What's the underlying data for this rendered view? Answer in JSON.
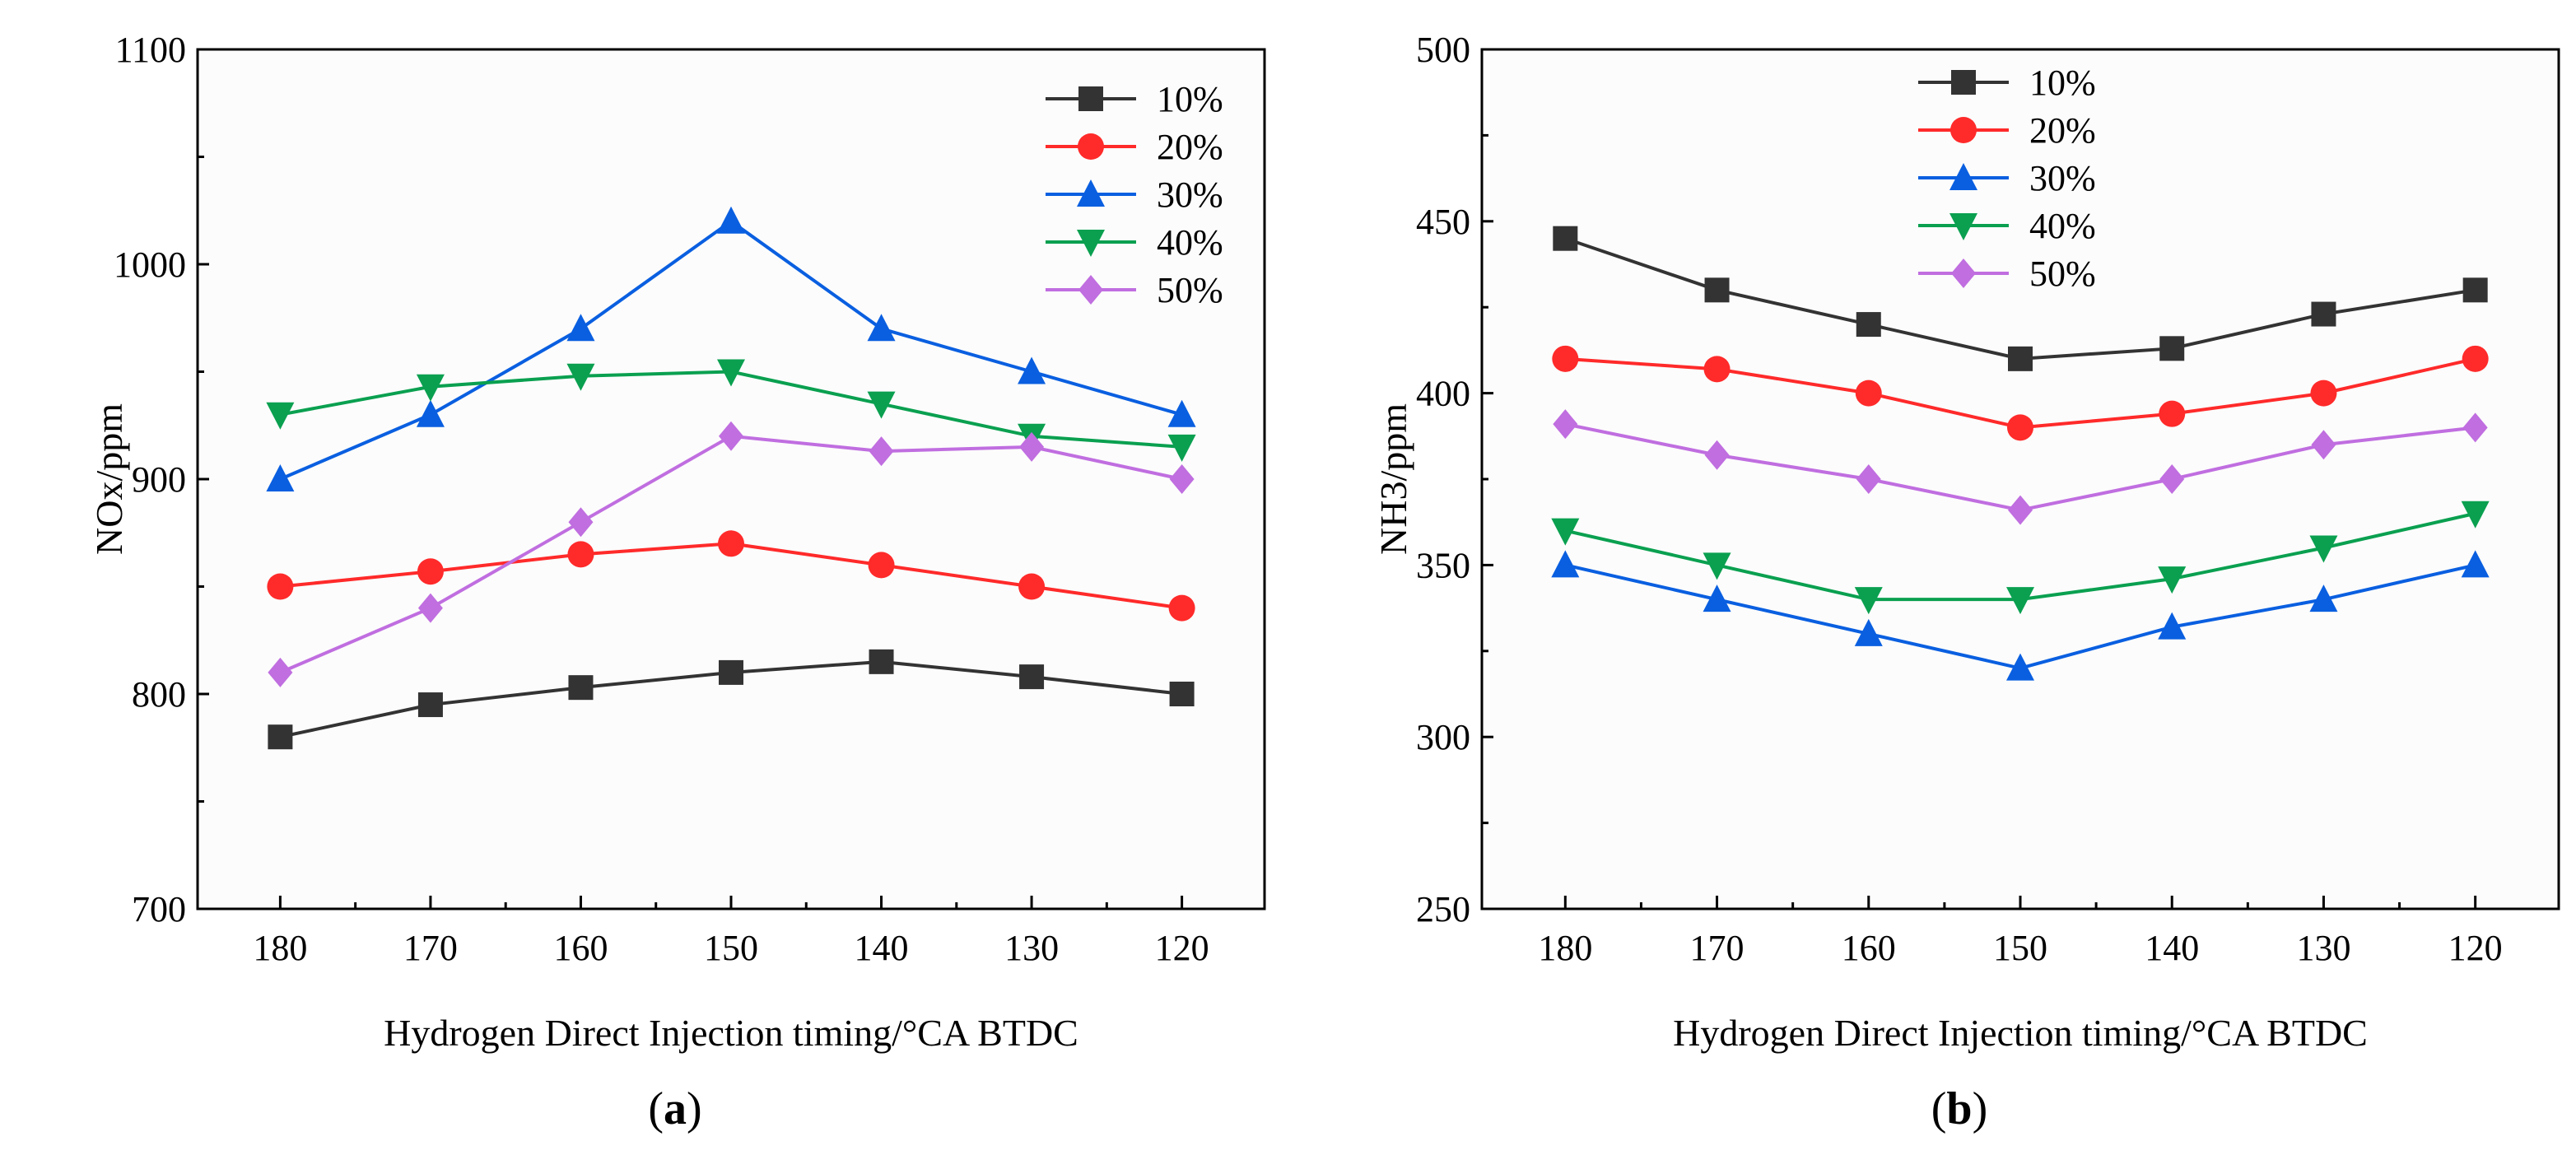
{
  "chart_data": [
    {
      "type": "line",
      "panel_label": "a",
      "xlabel": "Hydrogen Direct Injection timing/°CA BTDC",
      "ylabel": "NOx/ppm",
      "x": [
        180,
        170,
        160,
        150,
        140,
        130,
        120
      ],
      "xlim": [
        185.5,
        114.5
      ],
      "ylim": [
        700,
        1100
      ],
      "yticks": [
        700,
        800,
        900,
        1000,
        1100
      ],
      "legend_position": "top-right",
      "series": [
        {
          "name": "10%",
          "color": "#333333",
          "marker": "square",
          "values": [
            780,
            795,
            803,
            810,
            815,
            808,
            800
          ]
        },
        {
          "name": "20%",
          "color": "#ff2a2a",
          "marker": "circle",
          "values": [
            850,
            857,
            865,
            870,
            860,
            850,
            840
          ]
        },
        {
          "name": "30%",
          "color": "#0a5fe0",
          "marker": "triangle-up",
          "values": [
            900,
            930,
            970,
            1020,
            970,
            950,
            930
          ]
        },
        {
          "name": "40%",
          "color": "#0aa050",
          "marker": "triangle-down",
          "values": [
            930,
            943,
            948,
            950,
            935,
            920,
            915
          ]
        },
        {
          "name": "50%",
          "color": "#c06ee0",
          "marker": "diamond",
          "values": [
            810,
            840,
            880,
            920,
            913,
            915,
            900
          ]
        }
      ]
    },
    {
      "type": "line",
      "panel_label": "b",
      "xlabel": "Hydrogen Direct Injection timing/°CA BTDC",
      "ylabel": "NH3/ppm",
      "x": [
        180,
        170,
        160,
        150,
        140,
        130,
        120
      ],
      "xlim": [
        185.5,
        114.5
      ],
      "ylim": [
        250,
        500
      ],
      "yticks": [
        250,
        300,
        350,
        400,
        450,
        500
      ],
      "legend_position": "top-center",
      "series": [
        {
          "name": "10%",
          "color": "#333333",
          "marker": "square",
          "values": [
            445,
            430,
            420,
            410,
            413,
            423,
            430
          ]
        },
        {
          "name": "20%",
          "color": "#ff2a2a",
          "marker": "circle",
          "values": [
            410,
            407,
            400,
            390,
            394,
            400,
            410
          ]
        },
        {
          "name": "30%",
          "color": "#0a5fe0",
          "marker": "triangle-up",
          "values": [
            350,
            340,
            330,
            320,
            332,
            340,
            350
          ]
        },
        {
          "name": "40%",
          "color": "#0aa050",
          "marker": "triangle-down",
          "values": [
            360,
            350,
            340,
            340,
            346,
            355,
            365
          ]
        },
        {
          "name": "50%",
          "color": "#c06ee0",
          "marker": "diamond",
          "values": [
            391,
            382,
            375,
            366,
            375,
            385,
            390
          ]
        }
      ]
    }
  ]
}
